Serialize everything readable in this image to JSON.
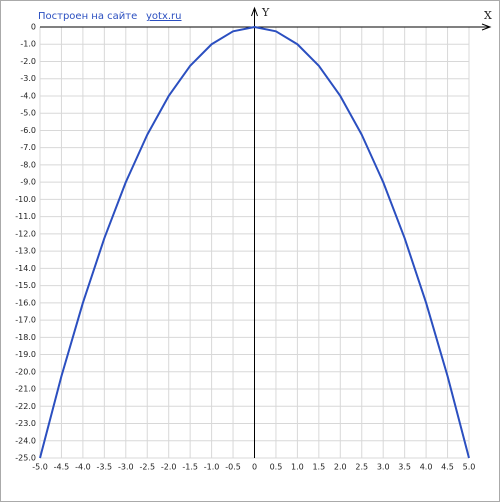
{
  "chart_data": {
    "type": "line",
    "annotations": [
      "Построен на сайте",
      "yotx.ru"
    ],
    "xlabel": "X",
    "ylabel": "Y",
    "x": [
      -5,
      -4.5,
      -4,
      -3.5,
      -3,
      -2.5,
      -2,
      -1.5,
      -1,
      -0.5,
      0,
      0.5,
      1,
      1.5,
      2,
      2.5,
      3,
      3.5,
      4,
      4.5,
      5
    ],
    "series": [
      {
        "color": "#2b4fc0",
        "values": [
          -25,
          -20.25,
          -16,
          -12.25,
          -9,
          -6.25,
          -4,
          -2.25,
          -1,
          -0.25,
          0,
          -0.25,
          -1,
          -2.25,
          -4,
          -6.25,
          -9,
          -12.25,
          -16,
          -20.25,
          -25
        ]
      }
    ],
    "xlim": [
      -5,
      5
    ],
    "ylim": [
      -25,
      0
    ],
    "xticks": [
      {
        "value": -5,
        "label": "-5.0"
      },
      -4.5,
      {
        "value": -4,
        "label": "-4.0"
      },
      -3.5,
      {
        "value": -3,
        "label": "-3.0"
      },
      -2.5,
      {
        "value": -2,
        "label": "-2.0"
      },
      -1.5,
      {
        "value": -1,
        "label": "-1.0"
      },
      -0.5,
      0,
      0.5,
      {
        "value": 1,
        "label": "1.0"
      },
      1.5,
      {
        "value": 2,
        "label": "2.0"
      },
      2.5,
      {
        "value": 3,
        "label": "3.0"
      },
      3.5,
      {
        "value": 4,
        "label": "4.0"
      },
      4.5,
      {
        "value": 5,
        "label": "5.0"
      }
    ],
    "yticks": [
      0,
      {
        "value": -1,
        "label": "-1.0"
      },
      {
        "value": -2,
        "label": "-2.0"
      },
      {
        "value": -3,
        "label": "-3.0"
      },
      {
        "value": -4,
        "label": "-4.0"
      },
      {
        "value": -5,
        "label": "-5.0"
      },
      {
        "value": -6,
        "label": "-6.0"
      },
      {
        "value": -7,
        "label": "-7.0"
      },
      {
        "value": -8,
        "label": "-8.0"
      },
      {
        "value": -9,
        "label": "-9.0"
      },
      {
        "value": -10,
        "label": "-10.0"
      },
      {
        "value": -11,
        "label": "-11.0"
      },
      {
        "value": -12,
        "label": "-12.0"
      },
      {
        "value": -13,
        "label": "-13.0"
      },
      {
        "value": -14,
        "label": "-14.0"
      },
      {
        "value": -15,
        "label": "-15.0"
      },
      {
        "value": -16,
        "label": "-16.0"
      },
      {
        "value": -17,
        "label": "-17.0"
      },
      {
        "value": -18,
        "label": "-18.0"
      },
      {
        "value": -19,
        "label": "-19.0"
      },
      {
        "value": -20,
        "label": "-20.0"
      },
      {
        "value": -21,
        "label": "-21.0"
      },
      {
        "value": -22,
        "label": "-22.0"
      },
      {
        "value": -23,
        "label": "-23.0"
      },
      {
        "value": -24,
        "label": "-24.0"
      },
      {
        "value": -25,
        "label": "-25.0"
      }
    ],
    "grid": true
  }
}
